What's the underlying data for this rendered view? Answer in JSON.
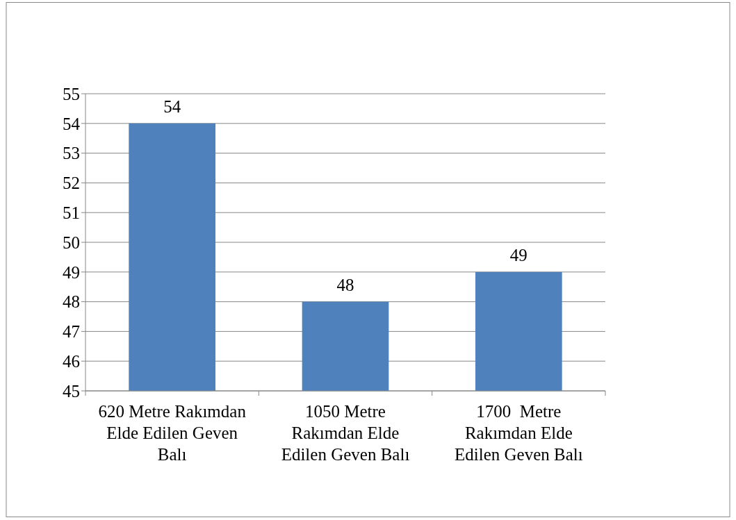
{
  "chart_data": {
    "type": "bar",
    "categories": [
      "620 Metre Rakımdan Elde Edilen Geven Balı",
      "1050 Metre Rakımdan Elde Edilen Geven Balı",
      "1700  Metre Rakımdan Elde Edilen Geven Balı"
    ],
    "values": [
      54,
      48,
      49
    ],
    "color": "#4f81bd",
    "ylim": [
      45,
      55
    ],
    "yticks": [
      45,
      46,
      47,
      48,
      49,
      50,
      51,
      52,
      53,
      54,
      55
    ],
    "grid": "y",
    "data_labels": true
  }
}
